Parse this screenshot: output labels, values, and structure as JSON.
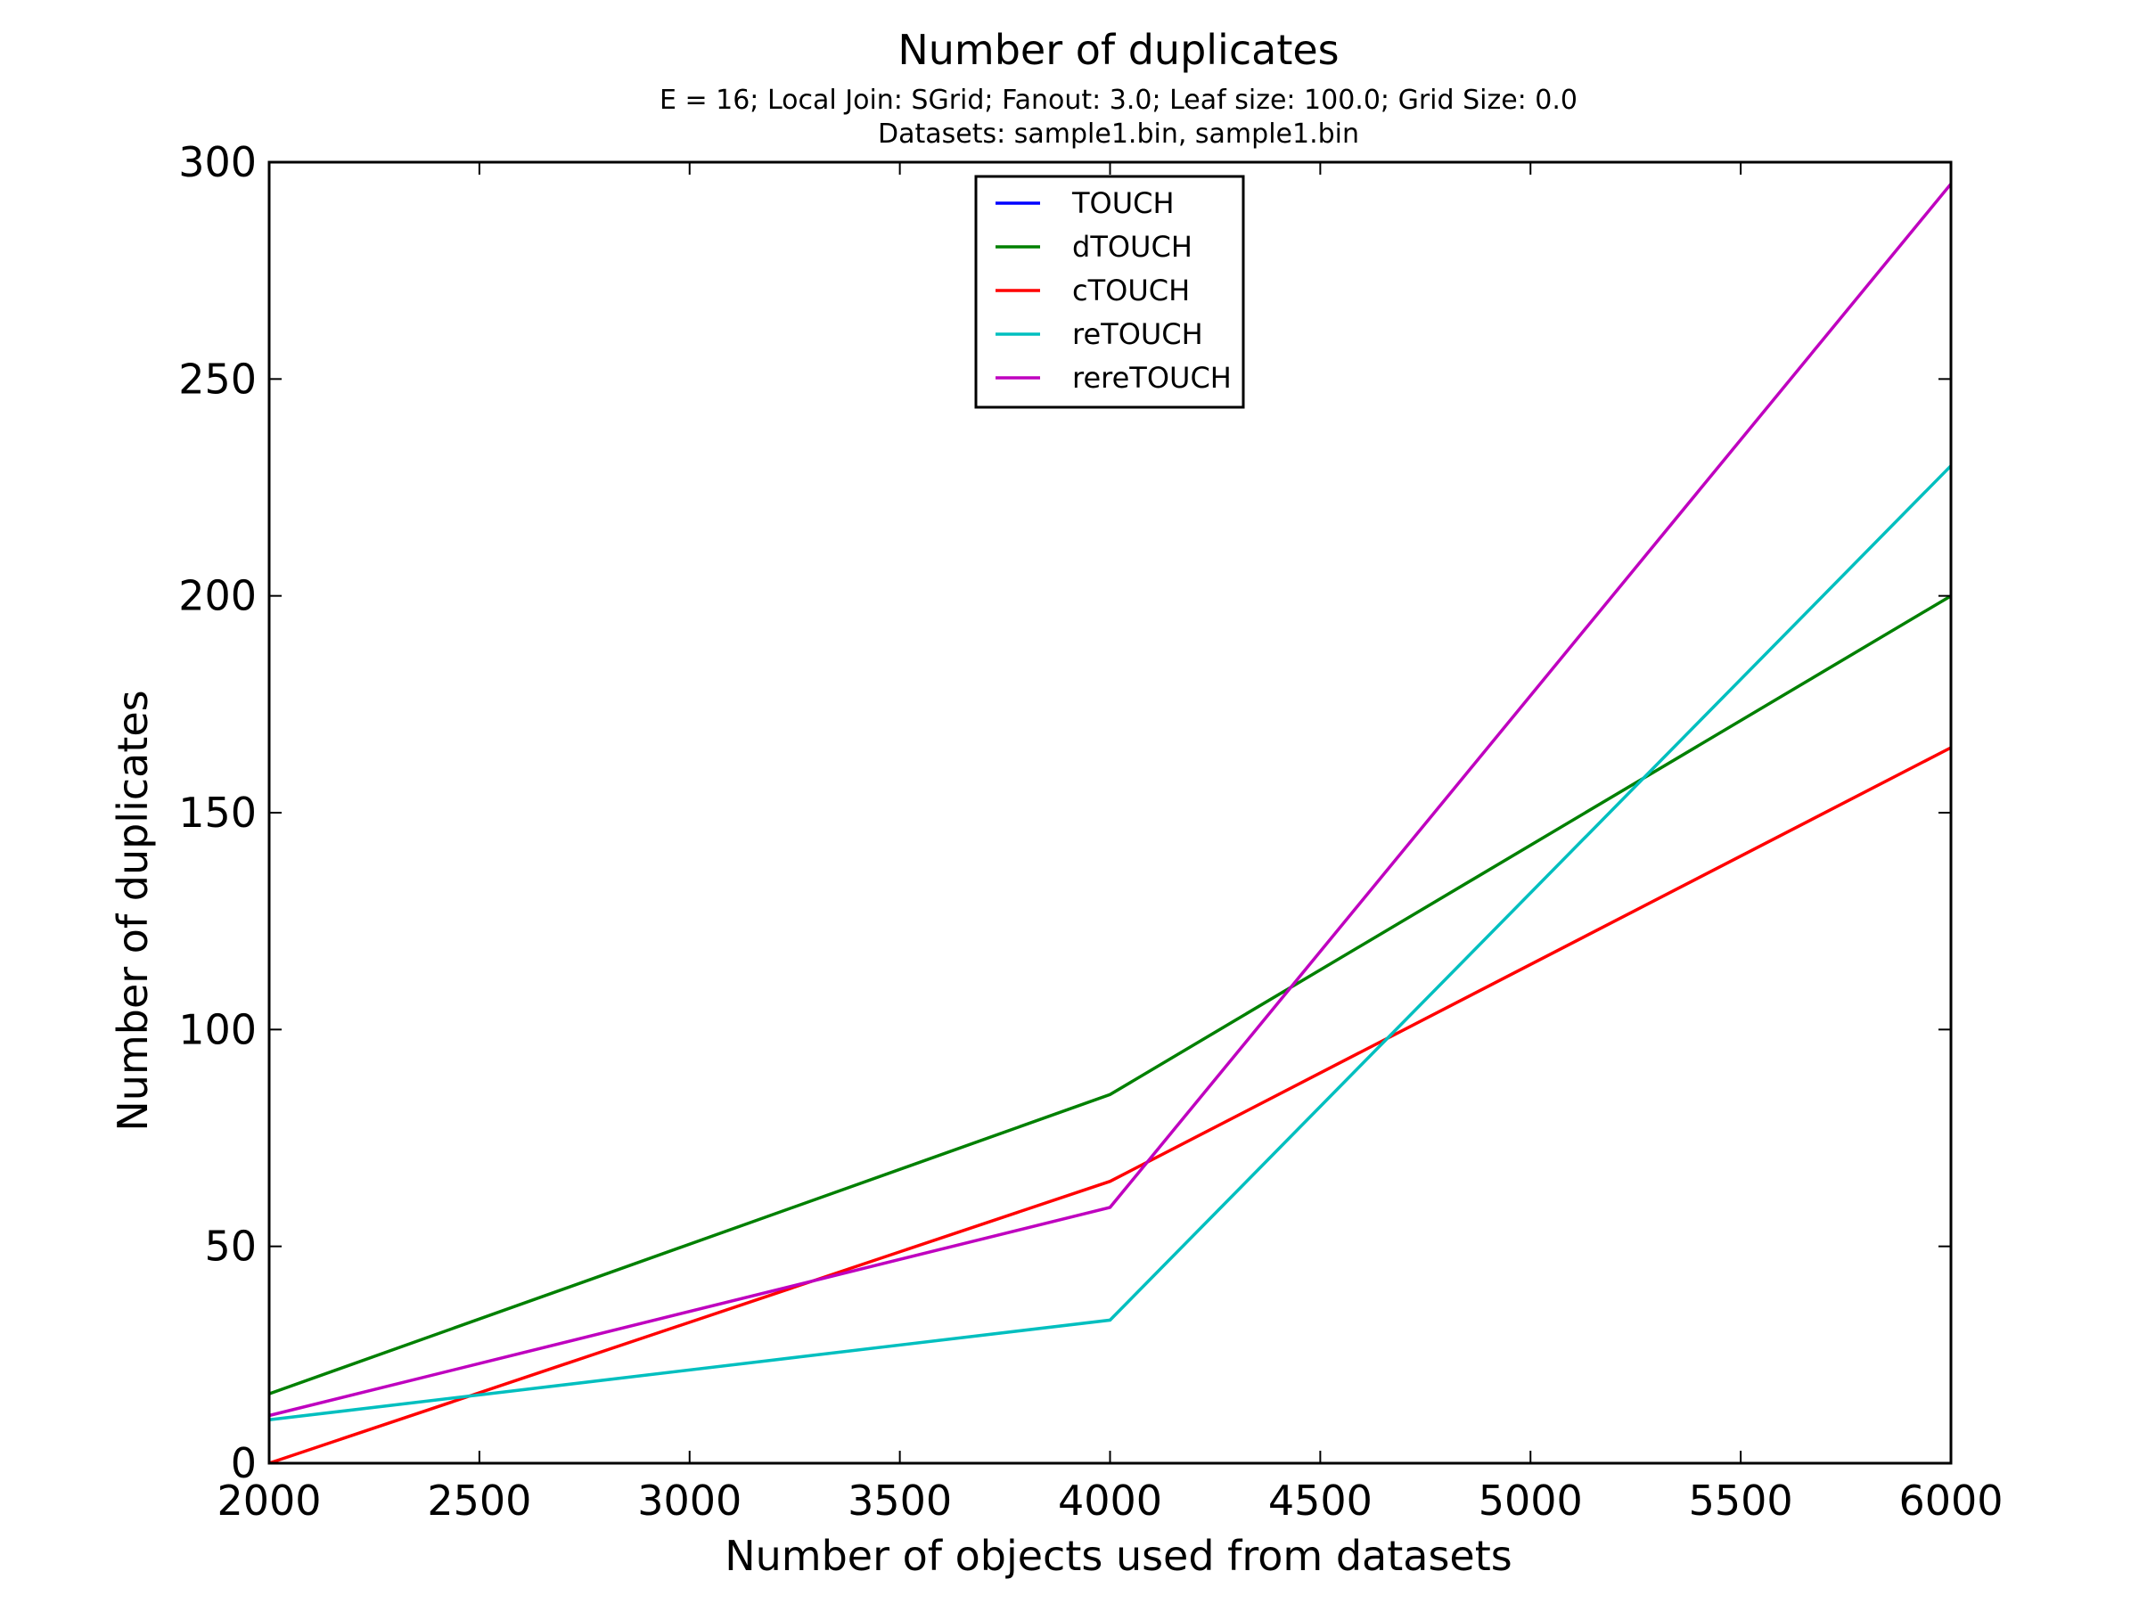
{
  "chart_data": {
    "type": "line",
    "title": "Number of duplicates",
    "subtitle_lines": [
      "E = 16; Local Join: SGrid; Fanout: 3.0; Leaf size: 100.0; Grid Size: 0.0",
      "Datasets: sample1.bin, sample1.bin"
    ],
    "xlabel": "Number of objects used from datasets",
    "ylabel": "Number of duplicates",
    "xlim": [
      2000,
      6000
    ],
    "ylim": [
      0,
      300
    ],
    "x_ticks": [
      2000,
      2500,
      3000,
      3500,
      4000,
      4500,
      5000,
      5500,
      6000
    ],
    "y_ticks": [
      0,
      50,
      100,
      150,
      200,
      250,
      300
    ],
    "grid": false,
    "legend_position": "top-center",
    "x": [
      2000,
      4000,
      6000
    ],
    "series": [
      {
        "name": "TOUCH",
        "color": "#0000ff",
        "values": [
          null,
          null,
          null
        ]
      },
      {
        "name": "dTOUCH",
        "color": "#008000",
        "values": [
          16,
          85,
          200
        ]
      },
      {
        "name": "cTOUCH",
        "color": "#ff0000",
        "values": [
          0,
          65,
          165
        ]
      },
      {
        "name": "reTOUCH",
        "color": "#00bfbf",
        "values": [
          10,
          33,
          230
        ]
      },
      {
        "name": "rereTOUCH",
        "color": "#bf00bf",
        "values": [
          11,
          59,
          295
        ]
      }
    ]
  }
}
